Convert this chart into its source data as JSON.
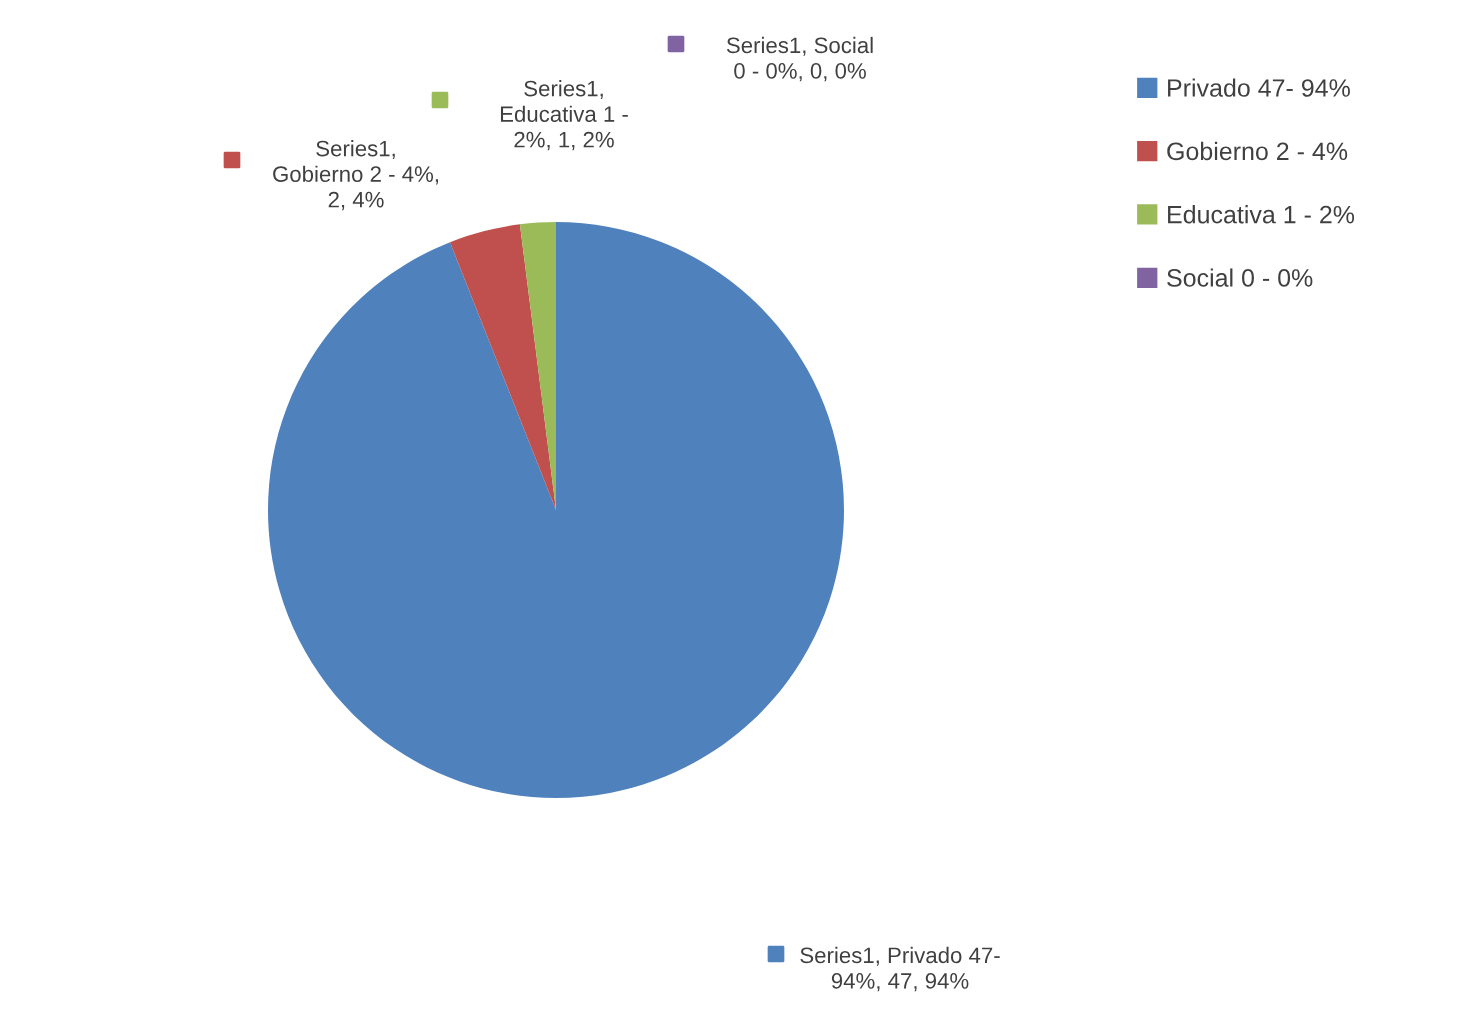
{
  "chart_data": {
    "type": "pie",
    "categories": [
      "Privado 47- 94%",
      "Gobierno 2 - 4%",
      "Educativa 1 - 2%",
      "Social 0 - 0%"
    ],
    "values": [
      47,
      2,
      1,
      0
    ],
    "colors": [
      "#4f81bd",
      "#c0504d",
      "#9bbb59",
      "#8064a2"
    ],
    "value_labels": [
      "Series1, Privado 47- 94%, 47, 94%",
      "Series1, Gobierno 2 - 4%, 2, 4%",
      "Series1, Educativa 1 - 2%, 1, 2%",
      "Series1, Social 0 - 0%, 0, 0%"
    ],
    "legend": "right"
  }
}
